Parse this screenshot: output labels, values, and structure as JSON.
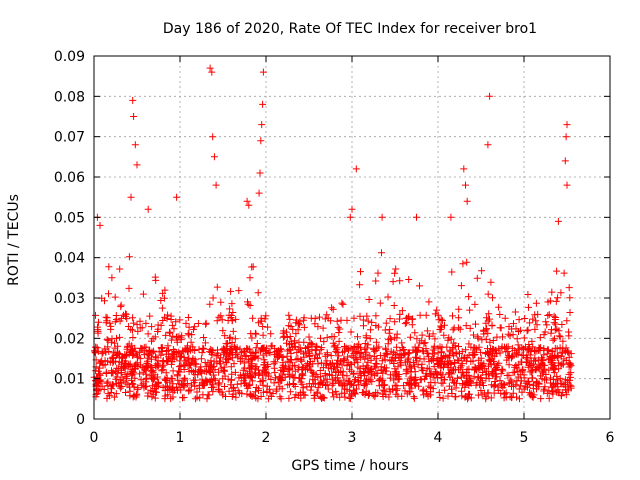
{
  "chart_data": {
    "type": "scatter",
    "title": "Day 186 of 2020, Rate Of TEC Index for receiver bro1",
    "xlabel": "GPS time / hours",
    "ylabel": "ROTI / TECUs",
    "xlim": [
      0,
      6
    ],
    "ylim": [
      0,
      0.09
    ],
    "xticks": [
      0,
      1,
      2,
      3,
      4,
      5,
      6
    ],
    "xtick_labels": [
      "0",
      "1",
      "2",
      "3",
      "4",
      "5",
      "6"
    ],
    "yticks": [
      0,
      0.01,
      0.02,
      0.03,
      0.04,
      0.05,
      0.06,
      0.07,
      0.08,
      0.09
    ],
    "ytick_labels": [
      "0",
      "0.01",
      "0.02",
      "0.03",
      "0.04",
      "0.05",
      "0.06",
      "0.07",
      "0.08",
      "0.09"
    ],
    "grid": true,
    "marker": "+",
    "color": "#ff0000",
    "x_end": 5.55,
    "peaks": [
      {
        "x": 0.04,
        "y": 0.05
      },
      {
        "x": 0.07,
        "y": 0.048
      },
      {
        "x": 0.45,
        "y": 0.079
      },
      {
        "x": 0.46,
        "y": 0.075
      },
      {
        "x": 0.48,
        "y": 0.068
      },
      {
        "x": 0.5,
        "y": 0.063
      },
      {
        "x": 0.43,
        "y": 0.055
      },
      {
        "x": 0.63,
        "y": 0.052
      },
      {
        "x": 0.96,
        "y": 0.055
      },
      {
        "x": 1.35,
        "y": 0.087
      },
      {
        "x": 1.37,
        "y": 0.086
      },
      {
        "x": 1.38,
        "y": 0.07
      },
      {
        "x": 1.4,
        "y": 0.065
      },
      {
        "x": 1.42,
        "y": 0.058
      },
      {
        "x": 1.78,
        "y": 0.054
      },
      {
        "x": 1.8,
        "y": 0.053
      },
      {
        "x": 1.97,
        "y": 0.086
      },
      {
        "x": 1.96,
        "y": 0.078
      },
      {
        "x": 1.95,
        "y": 0.073
      },
      {
        "x": 1.94,
        "y": 0.069
      },
      {
        "x": 1.93,
        "y": 0.061
      },
      {
        "x": 1.92,
        "y": 0.056
      },
      {
        "x": 2.98,
        "y": 0.05
      },
      {
        "x": 3.0,
        "y": 0.052
      },
      {
        "x": 3.05,
        "y": 0.062
      },
      {
        "x": 3.35,
        "y": 0.05
      },
      {
        "x": 3.75,
        "y": 0.05
      },
      {
        "x": 4.15,
        "y": 0.05
      },
      {
        "x": 4.3,
        "y": 0.062
      },
      {
        "x": 4.32,
        "y": 0.058
      },
      {
        "x": 4.34,
        "y": 0.054
      },
      {
        "x": 4.6,
        "y": 0.08
      },
      {
        "x": 4.58,
        "y": 0.068
      },
      {
        "x": 5.5,
        "y": 0.073
      },
      {
        "x": 5.49,
        "y": 0.07
      },
      {
        "x": 5.48,
        "y": 0.064
      },
      {
        "x": 5.5,
        "y": 0.058
      },
      {
        "x": 5.4,
        "y": 0.049
      }
    ],
    "envelope": [
      {
        "x": 0.0,
        "y": 0.025
      },
      {
        "x": 0.2,
        "y": 0.04
      },
      {
        "x": 0.4,
        "y": 0.04
      },
      {
        "x": 0.6,
        "y": 0.045
      },
      {
        "x": 0.8,
        "y": 0.035
      },
      {
        "x": 1.0,
        "y": 0.025
      },
      {
        "x": 1.2,
        "y": 0.02
      },
      {
        "x": 1.4,
        "y": 0.035
      },
      {
        "x": 1.6,
        "y": 0.035
      },
      {
        "x": 1.8,
        "y": 0.04
      },
      {
        "x": 2.0,
        "y": 0.035
      },
      {
        "x": 2.2,
        "y": 0.025
      },
      {
        "x": 2.5,
        "y": 0.025
      },
      {
        "x": 2.8,
        "y": 0.03
      },
      {
        "x": 3.0,
        "y": 0.035
      },
      {
        "x": 3.2,
        "y": 0.04
      },
      {
        "x": 3.4,
        "y": 0.045
      },
      {
        "x": 3.6,
        "y": 0.04
      },
      {
        "x": 3.8,
        "y": 0.035
      },
      {
        "x": 4.0,
        "y": 0.03
      },
      {
        "x": 4.2,
        "y": 0.04
      },
      {
        "x": 4.4,
        "y": 0.04
      },
      {
        "x": 4.6,
        "y": 0.035
      },
      {
        "x": 4.8,
        "y": 0.025
      },
      {
        "x": 5.0,
        "y": 0.03
      },
      {
        "x": 5.2,
        "y": 0.035
      },
      {
        "x": 5.4,
        "y": 0.04
      },
      {
        "x": 5.55,
        "y": 0.04
      }
    ]
  }
}
